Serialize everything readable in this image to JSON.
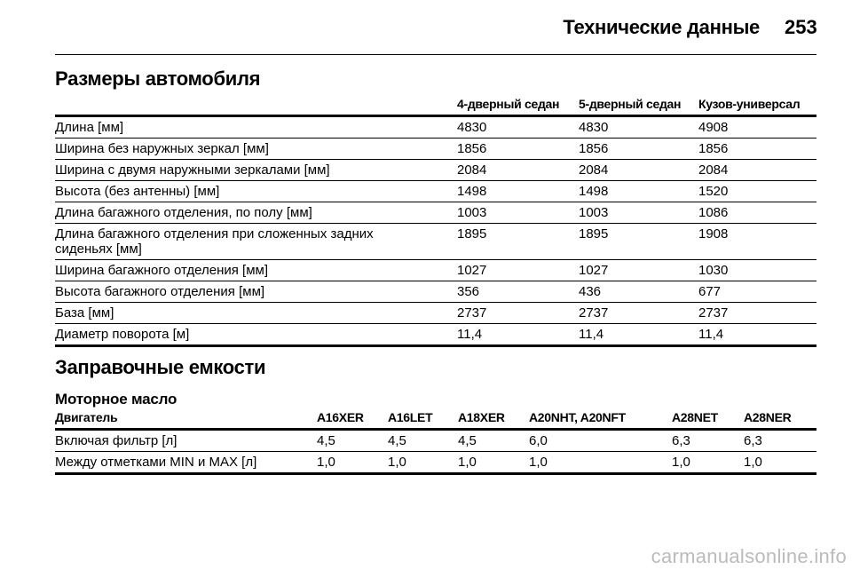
{
  "header": {
    "title": "Технические данные",
    "page": "253"
  },
  "dimensions": {
    "title": "Размеры автомобиля",
    "columns": [
      "4-дверный седан",
      "5-дверный седан",
      "Кузов-универсал"
    ],
    "rows": [
      {
        "label": "Длина [мм]",
        "values": [
          "4830",
          "4830",
          "4908"
        ]
      },
      {
        "label": "Ширина без наружных зеркал [мм]",
        "values": [
          "1856",
          "1856",
          "1856"
        ]
      },
      {
        "label": "Ширина с двумя наружными зеркалами [мм]",
        "values": [
          "2084",
          "2084",
          "2084"
        ]
      },
      {
        "label": "Высота (без антенны) [мм]",
        "values": [
          "1498",
          "1498",
          "1520"
        ]
      },
      {
        "label": "Длина багажного отделения, по полу [мм]",
        "values": [
          "1003",
          "1003",
          "1086"
        ]
      },
      {
        "label": "Длина багажного отделения при сложенных задних сиденьях [мм]",
        "values": [
          "1895",
          "1895",
          "1908"
        ]
      },
      {
        "label": "Ширина багажного отделения [мм]",
        "values": [
          "1027",
          "1027",
          "1030"
        ]
      },
      {
        "label": "Высота багажного отделения [мм]",
        "values": [
          "356",
          "436",
          "677"
        ]
      },
      {
        "label": "База [мм]",
        "values": [
          "2737",
          "2737",
          "2737"
        ]
      },
      {
        "label": "Диаметр поворота [м]",
        "values": [
          "11,4",
          "11,4",
          "11,4"
        ]
      }
    ]
  },
  "capacities": {
    "title": "Заправочные емкости",
    "subtitle": "Моторное масло",
    "columns": [
      "Двигатель",
      "A16XER",
      "A16LET",
      "A18XER",
      "A20NHT, A20NFT",
      "A28NET",
      "A28NER"
    ],
    "rows": [
      {
        "label": "Включая фильтр [л]",
        "values": [
          "4,5",
          "4,5",
          "4,5",
          "6,0",
          "6,3",
          "6,3"
        ]
      },
      {
        "label": "Между отметками MIN и MAX [л]",
        "values": [
          "1,0",
          "1,0",
          "1,0",
          "1,0",
          "1,0",
          "1,0"
        ]
      }
    ]
  },
  "watermark": "carmanualsonline.info"
}
